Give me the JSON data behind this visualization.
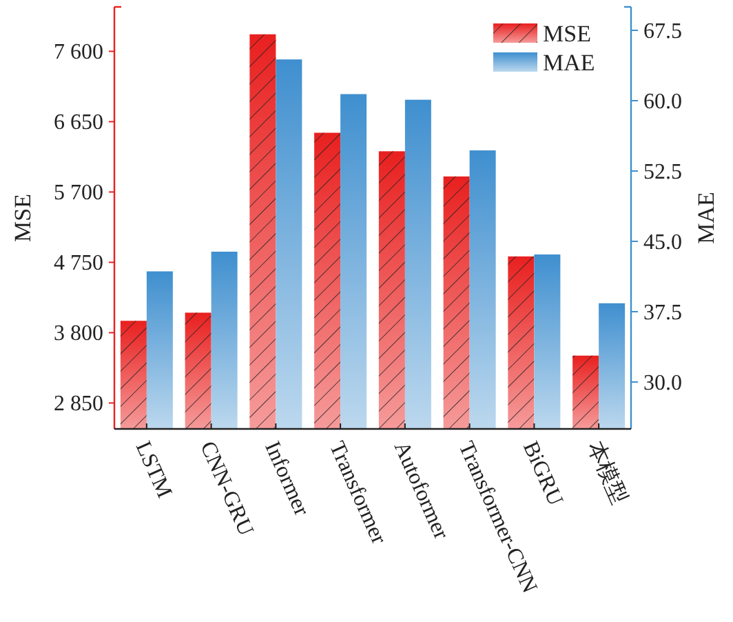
{
  "chart_data": {
    "type": "bar",
    "xlabel": null,
    "ylabel": "MSE",
    "y2label": "MAE",
    "categories": [
      "LSTM",
      "CNN-GRU",
      "Informer",
      "Transformer",
      "Autoformer",
      "Transformer-CNN",
      "BiGRU",
      "本模型"
    ],
    "series": [
      {
        "name": "MSE",
        "color": "#e8201f",
        "values": [
          3960,
          4070,
          7830,
          6500,
          6250,
          5910,
          4830,
          3490
        ]
      },
      {
        "name": "MAE",
        "color": "#3f8fcf",
        "axis": "y2",
        "values": [
          41.8,
          43.9,
          64.4,
          60.7,
          60.1,
          54.7,
          43.6,
          38.4
        ]
      }
    ],
    "ylim": [
      2500,
      8200
    ],
    "yticks": [
      {
        "value": 2850,
        "label": "2 850"
      },
      {
        "value": 3800,
        "label": "3 800"
      },
      {
        "value": 4750,
        "label": "4 750"
      },
      {
        "value": 5700,
        "label": "5 700"
      },
      {
        "value": 6650,
        "label": "6 650"
      },
      {
        "value": 7600,
        "label": "7 600"
      }
    ],
    "y2lim": [
      25,
      70
    ],
    "y2ticks": [
      {
        "value": 30,
        "label": "30.0"
      },
      {
        "value": 37.5,
        "label": "37.5"
      },
      {
        "value": 45,
        "label": "45.0"
      },
      {
        "value": 52.5,
        "label": "52.5"
      },
      {
        "value": 60,
        "label": "60.0"
      },
      {
        "value": 67.5,
        "label": "67.5"
      }
    ],
    "legend": "top right"
  }
}
